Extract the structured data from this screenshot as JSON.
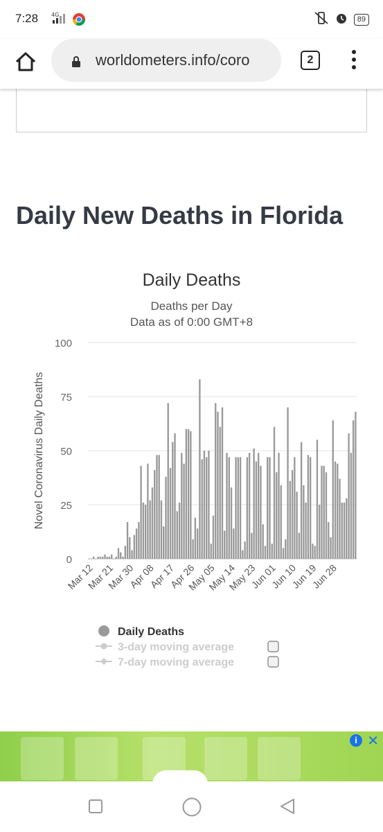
{
  "status": {
    "time": "7:28",
    "network": "4G",
    "battery": "89"
  },
  "browser": {
    "url": "worldometers.info/coro",
    "tab_count": "2"
  },
  "page": {
    "section_title": "Daily New Deaths in Florida"
  },
  "chart_data": {
    "type": "bar",
    "title": "Daily Deaths",
    "subtitle": "Deaths per Day",
    "subtitle2": "Data as of 0:00 GMT+8",
    "ylabel": "Novel Coronavirus Daily Deaths",
    "ylim": [
      0,
      100
    ],
    "yticks": [
      0,
      25,
      50,
      75,
      100
    ],
    "xticks": [
      "Mar 12",
      "Mar 21",
      "Mar 30",
      "Apr 08",
      "Apr 17",
      "Apr 26",
      "May 05",
      "May 14",
      "May 23",
      "Jun 01",
      "Jun 10",
      "Jun 19",
      "Jun 28"
    ],
    "start_date": "Mar 12",
    "series": [
      {
        "name": "Daily Deaths",
        "color": "#999999",
        "values": [
          0,
          0,
          1,
          0,
          1,
          1,
          1,
          2,
          1,
          1,
          2,
          0,
          1,
          5,
          3,
          1,
          6,
          17,
          10,
          4,
          11,
          14,
          17,
          43,
          26,
          25,
          44,
          27,
          33,
          41,
          48,
          48,
          27,
          15,
          38,
          72,
          42,
          54,
          58,
          22,
          26,
          49,
          44,
          60,
          60,
          59,
          9,
          19,
          14,
          83,
          46,
          50,
          47,
          50,
          7,
          20,
          72,
          68,
          61,
          70,
          13,
          49,
          47,
          33,
          14,
          47,
          47,
          47,
          4,
          8,
          47,
          49,
          12,
          51,
          45,
          49,
          43,
          16,
          6,
          47,
          47,
          7,
          61,
          40,
          49,
          34,
          5,
          9,
          70,
          36,
          41,
          47,
          31,
          12,
          54,
          34,
          26,
          48,
          47,
          7,
          6,
          55,
          25,
          43,
          43,
          40,
          17,
          10,
          64,
          45,
          44,
          37,
          26,
          26,
          28,
          58,
          49,
          64,
          68
        ],
        "show_in_legend": true
      }
    ],
    "legend": [
      {
        "label": "Daily Deaths",
        "active": true
      },
      {
        "label": "3-day moving average",
        "active": false
      },
      {
        "label": "7-day moving average",
        "active": false
      }
    ],
    "grid": true,
    "legend_placement": "bottom"
  },
  "icons": [
    "home-icon",
    "lock-icon",
    "tabs-icon",
    "more-vert-icon",
    "mute-icon",
    "alarm-icon",
    "info-icon",
    "close-icon",
    "square-icon",
    "circle-icon",
    "back-icon"
  ]
}
